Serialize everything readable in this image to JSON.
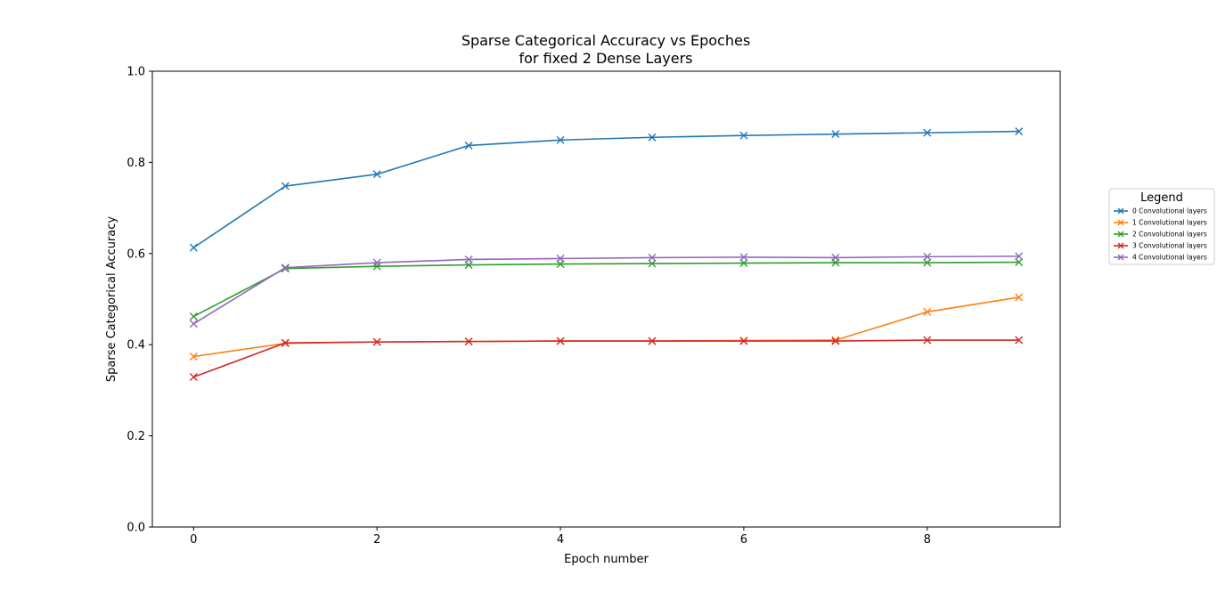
{
  "chart_data": {
    "type": "line",
    "title_lines": [
      "Sparse Categorical Accuracy vs Epoches",
      "for fixed 2 Dense Layers"
    ],
    "xlabel": "Epoch number",
    "ylabel": "Sparse Categorical Accuracy",
    "xlim": [
      -0.45,
      9.45
    ],
    "ylim": [
      0.0,
      1.0
    ],
    "xticks": [
      0,
      2,
      4,
      6,
      8
    ],
    "yticks": [
      0.0,
      0.2,
      0.4,
      0.6,
      0.8,
      1.0
    ],
    "ytick_labels": [
      "0.0",
      "0.2",
      "0.4",
      "0.6",
      "0.8",
      "1.0"
    ],
    "grid": false,
    "marker": "x",
    "legend": {
      "title": "Legend",
      "placement": "outside-right"
    },
    "x": [
      0,
      1,
      2,
      3,
      4,
      5,
      6,
      7,
      8,
      9
    ],
    "series": [
      {
        "name": "0 Convolutional layers",
        "color": "#1f77b4",
        "values": [
          0.613,
          0.748,
          0.774,
          0.837,
          0.849,
          0.855,
          0.859,
          0.862,
          0.865,
          0.868
        ]
      },
      {
        "name": "1 Convolutional layers",
        "color": "#ff7f0e",
        "values": [
          0.374,
          0.403,
          0.406,
          0.407,
          0.408,
          0.408,
          0.409,
          0.41,
          0.472,
          0.504
        ]
      },
      {
        "name": "2 Convolutional layers",
        "color": "#2ca02c",
        "values": [
          0.462,
          0.567,
          0.572,
          0.575,
          0.577,
          0.578,
          0.579,
          0.58,
          0.58,
          0.581
        ]
      },
      {
        "name": "3 Convolutional layers",
        "color": "#d62728",
        "values": [
          0.329,
          0.404,
          0.406,
          0.407,
          0.408,
          0.408,
          0.408,
          0.408,
          0.41,
          0.41
        ]
      },
      {
        "name": "4 Convolutional layers",
        "color": "#9467bd",
        "values": [
          0.446,
          0.569,
          0.58,
          0.587,
          0.589,
          0.591,
          0.592,
          0.591,
          0.593,
          0.594
        ]
      }
    ]
  }
}
